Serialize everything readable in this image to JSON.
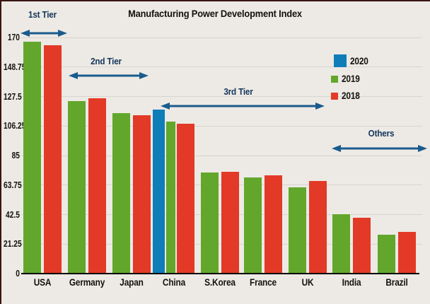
{
  "title": "Manufacturing Power Development Index",
  "colors": {
    "background": "#edeae5",
    "grid": "#d8d5d0",
    "axis": "#000000",
    "arrow": "#1a5b8d",
    "tier_text": "#14365a",
    "frame_border": "#3a1512",
    "series_2020": "#0f7db8",
    "series_2019": "#62a72c",
    "series_2018": "#e23a26"
  },
  "legend": {
    "position": "right-upper",
    "items": [
      {
        "label": "2020",
        "color": "#0f7db8"
      },
      {
        "label": "2019",
        "color": "#62a72c"
      },
      {
        "label": "2018",
        "color": "#e23a26"
      }
    ]
  },
  "tiers": [
    {
      "label": "1st Tier",
      "covers": [
        "USA"
      ]
    },
    {
      "label": "2nd Tier",
      "covers": [
        "Germany",
        "Japan"
      ]
    },
    {
      "label": "3rd Tier",
      "covers": [
        "China",
        "S.Korea",
        "France",
        "UK"
      ]
    },
    {
      "label": "Others",
      "covers": [
        "India",
        "Brazil"
      ]
    }
  ],
  "chart_data": {
    "type": "bar",
    "title": "Manufacturing Power Development Index",
    "xlabel": "",
    "ylabel": "",
    "categories": [
      "USA",
      "Germany",
      "Japan",
      "China",
      "S.Korea",
      "France",
      "UK",
      "India",
      "Brazil"
    ],
    "series": [
      {
        "name": "2020",
        "color": "#0f7db8",
        "values": [
          null,
          null,
          null,
          118,
          null,
          null,
          null,
          null,
          null
        ]
      },
      {
        "name": "2019",
        "color": "#62a72c",
        "values": [
          167,
          124,
          115.5,
          109.5,
          73,
          69,
          62,
          43,
          28
        ]
      },
      {
        "name": "2018",
        "color": "#e23a26",
        "values": [
          164.5,
          126,
          114,
          108,
          73.5,
          71,
          66.5,
          40,
          30
        ]
      }
    ],
    "ylim": [
      0,
      170
    ],
    "yticks": [
      0,
      21.25,
      42.5,
      63.75,
      85,
      106.25,
      127.5,
      148.75,
      170
    ],
    "grid": true,
    "legend_position": "upper right"
  }
}
